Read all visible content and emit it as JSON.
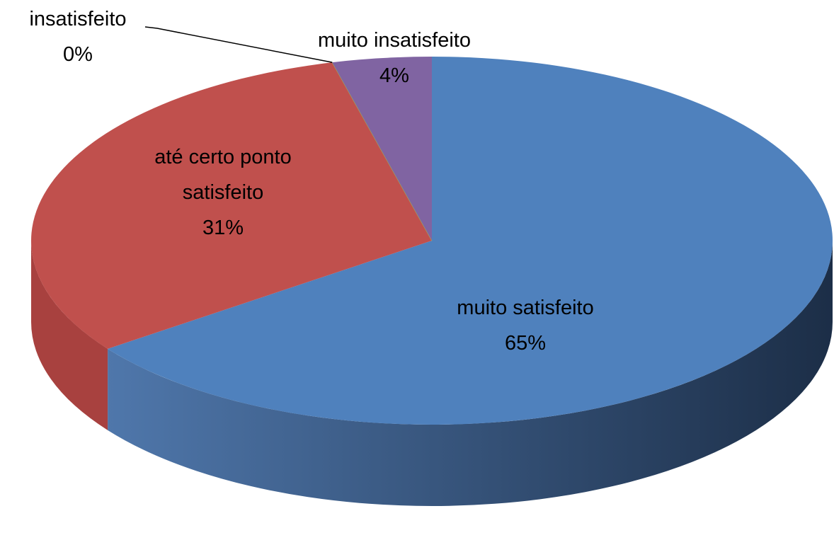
{
  "chart_data": {
    "type": "pie",
    "categories": [
      "muito satisfeito",
      "até certo ponto satisfeito",
      "insatisfeito",
      "muito insatisfeito"
    ],
    "values": [
      65,
      31,
      0,
      4
    ],
    "value_labels": [
      "65%",
      "31%",
      "0%",
      "4%"
    ],
    "colors": [
      "#4f81bd",
      "#c0504d",
      "#9bbb59",
      "#8064a2"
    ],
    "three_d": true
  }
}
